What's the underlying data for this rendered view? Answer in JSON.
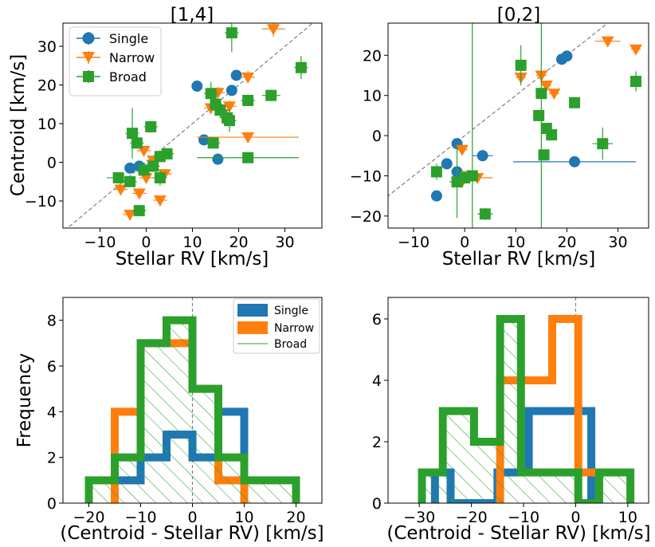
{
  "colors": {
    "single": "#1f77b4",
    "narrow": "#ff7f0e",
    "broad": "#2ca02c",
    "diag": "#7f7f7f"
  },
  "chart_data": [
    {
      "type": "scatter",
      "title": "[1,4]",
      "xlabel": "Stellar RV [km/s]",
      "ylabel": "Centroid [km/s]",
      "xlim": [
        -18,
        38
      ],
      "ylim": [
        -17,
        36
      ],
      "xticks": [
        -10,
        0,
        10,
        20,
        30
      ],
      "yticks": [
        -10,
        0,
        10,
        20,
        30
      ],
      "tick_labels_x": [
        "−10",
        "0",
        "10",
        "20",
        "30"
      ],
      "tick_labels_y": [
        "−10",
        "0",
        "10",
        "20",
        "30"
      ],
      "diagonal": true,
      "legend": {
        "position": "top-left",
        "entries": [
          "Single",
          "Narrow",
          "Broad"
        ]
      },
      "series": [
        {
          "name": "Single",
          "marker": "circle",
          "points": [
            {
              "x": -3.5,
              "y": -1.5,
              "xerr": 0.8,
              "yerr": 0.8
            },
            {
              "x": -1.5,
              "y": -1.0,
              "xerr": 0.8,
              "yerr": 0.8
            },
            {
              "x": 11,
              "y": 19.7,
              "xerr": 0.8,
              "yerr": 0.8
            },
            {
              "x": 12.5,
              "y": 5.8,
              "xerr": 1.0,
              "yerr": 0.8
            },
            {
              "x": 15.5,
              "y": 0.8,
              "xerr": 0.8,
              "yerr": 0.8
            },
            {
              "x": 18.5,
              "y": 18.6,
              "xerr": 0.8,
              "yerr": 0.8
            },
            {
              "x": 19.5,
              "y": 22.5,
              "xerr": 0.8,
              "yerr": 0.8
            }
          ]
        },
        {
          "name": "Narrow",
          "marker": "triangle_down",
          "points": [
            {
              "x": -5.5,
              "y": -7.0,
              "xerr": 1.5,
              "yerr": 1.0
            },
            {
              "x": -3.5,
              "y": -13.5,
              "xerr": 1.5,
              "yerr": 1.0
            },
            {
              "x": -1.5,
              "y": -8.0,
              "xerr": 1.5,
              "yerr": 1.0
            },
            {
              "x": 0,
              "y": -4.0,
              "xerr": 1.5,
              "yerr": 1.0
            },
            {
              "x": -0.5,
              "y": 3.0,
              "xerr": 1.5,
              "yerr": 1.0
            },
            {
              "x": 1.5,
              "y": 0.5,
              "xerr": 1.5,
              "yerr": 1.0
            },
            {
              "x": 3,
              "y": -9.8,
              "xerr": 1.5,
              "yerr": 1.0
            },
            {
              "x": 4,
              "y": -3.0,
              "xerr": 1.5,
              "yerr": 1.0
            },
            {
              "x": 14,
              "y": 14.0,
              "xerr": 1.5,
              "yerr": 1.5
            },
            {
              "x": 15.5,
              "y": 18.0,
              "xerr": 1.5,
              "yerr": 1.5
            },
            {
              "x": 16.5,
              "y": 12.5,
              "xerr": 1.5,
              "yerr": 1.5
            },
            {
              "x": 18,
              "y": 14.5,
              "xerr": 1.5,
              "yerr": 1.5
            },
            {
              "x": 22,
              "y": 6.5,
              "xerr": 11,
              "yerr": 0.5
            },
            {
              "x": 22,
              "y": 22.0,
              "xerr": 1.5,
              "yerr": 1.5
            },
            {
              "x": 27.5,
              "y": 34.5,
              "xerr": 2.5,
              "yerr": 2.0
            }
          ]
        },
        {
          "name": "Broad",
          "marker": "square",
          "points": [
            {
              "x": -6,
              "y": -4.0,
              "xerr": 2.5,
              "yerr": 1.0
            },
            {
              "x": -3.5,
              "y": -5.0,
              "xerr": 1.5,
              "yerr": 1.0
            },
            {
              "x": -3,
              "y": 7.5,
              "xerr": 1.5,
              "yerr": 6.5
            },
            {
              "x": -2,
              "y": 5.0,
              "xerr": 1.5,
              "yerr": 1.5
            },
            {
              "x": -1.5,
              "y": -12.5,
              "xerr": 1.5,
              "yerr": 1.0
            },
            {
              "x": -0.5,
              "y": -2.0,
              "xerr": 1.5,
              "yerr": 1.5
            },
            {
              "x": 1,
              "y": 9.2,
              "xerr": 1.5,
              "yerr": 1.5
            },
            {
              "x": 1.5,
              "y": -1.0,
              "xerr": 1.5,
              "yerr": 1.5
            },
            {
              "x": 3,
              "y": -4.0,
              "xerr": 1.5,
              "yerr": 2.0
            },
            {
              "x": 3,
              "y": 1.5,
              "xerr": 1.5,
              "yerr": 1.0
            },
            {
              "x": 4.5,
              "y": 2.2,
              "xerr": 1.5,
              "yerr": 1.0
            },
            {
              "x": 14,
              "y": 17.8,
              "xerr": 1.5,
              "yerr": 3.0
            },
            {
              "x": 14.5,
              "y": 5.0,
              "xerr": 1.5,
              "yerr": 1.5
            },
            {
              "x": 15,
              "y": 15.0,
              "xerr": 1.5,
              "yerr": 2.0
            },
            {
              "x": 16,
              "y": 13.5,
              "xerr": 1.5,
              "yerr": 2.0
            },
            {
              "x": 17.5,
              "y": 11.5,
              "xerr": 1.5,
              "yerr": 2.0
            },
            {
              "x": 18,
              "y": 10.8,
              "xerr": 1.5,
              "yerr": 3.0
            },
            {
              "x": 18.5,
              "y": 33.5,
              "xerr": 1.5,
              "yerr": 5.0
            },
            {
              "x": 22,
              "y": 16.0,
              "xerr": 1.5,
              "yerr": 1.5
            },
            {
              "x": 22,
              "y": 1.2,
              "xerr": 11,
              "yerr": 0.5
            },
            {
              "x": 27,
              "y": 17.3,
              "xerr": 2.0,
              "yerr": 1.5
            },
            {
              "x": 33.5,
              "y": 24.5,
              "xerr": 1.5,
              "yerr": 3.0
            }
          ]
        }
      ]
    },
    {
      "type": "scatter",
      "title": "[0,2]",
      "xlabel": "Stellar RV [km/s]",
      "ylabel": "",
      "xlim": [
        -15,
        36
      ],
      "ylim": [
        -23,
        28
      ],
      "xticks": [
        -10,
        0,
        10,
        20,
        30
      ],
      "yticks": [
        -20,
        -10,
        0,
        10,
        20
      ],
      "tick_labels_x": [
        "−10",
        "0",
        "10",
        "20",
        "30"
      ],
      "tick_labels_y": [
        "−20",
        "−10",
        "0",
        "10",
        "20"
      ],
      "diagonal": true,
      "series": [
        {
          "name": "Single",
          "marker": "circle",
          "points": [
            {
              "x": -5.5,
              "y": -15.0,
              "xerr": 0.8,
              "yerr": 0.8
            },
            {
              "x": -3.5,
              "y": -7.0,
              "xerr": 0.8,
              "yerr": 0.8
            },
            {
              "x": -1.5,
              "y": -2.0,
              "xerr": 0.8,
              "yerr": 0.8
            },
            {
              "x": -1.5,
              "y": -9.0,
              "xerr": 0.8,
              "yerr": 0.8
            },
            {
              "x": 3.5,
              "y": -5.0,
              "xerr": 2.0,
              "yerr": 0.8
            },
            {
              "x": 19,
              "y": 19.0,
              "xerr": 0.8,
              "yerr": 0.8
            },
            {
              "x": 20,
              "y": 19.8,
              "xerr": 0.8,
              "yerr": 0.8
            },
            {
              "x": 21.5,
              "y": -6.5,
              "xerr": 12,
              "yerr": 0.5
            }
          ]
        },
        {
          "name": "Narrow",
          "marker": "triangle_down",
          "points": [
            {
              "x": -0.5,
              "y": -3.5,
              "xerr": 1.0,
              "yerr": 1.0
            },
            {
              "x": -0.5,
              "y": -11.5,
              "xerr": 1.5,
              "yerr": 1.0
            },
            {
              "x": 0.5,
              "y": -10.0,
              "xerr": 1.5,
              "yerr": 1.0
            },
            {
              "x": 2.5,
              "y": -10.5,
              "xerr": 3.0,
              "yerr": 1.0
            },
            {
              "x": 11,
              "y": 14.5,
              "xerr": 1.0,
              "yerr": 1.0
            },
            {
              "x": 15,
              "y": 15.0,
              "xerr": 1.0,
              "yerr": 1.0
            },
            {
              "x": 16,
              "y": 12.5,
              "xerr": 1.0,
              "yerr": 1.0
            },
            {
              "x": 17.5,
              "y": 10.5,
              "xerr": 1.0,
              "yerr": 1.0
            },
            {
              "x": 28,
              "y": 23.5,
              "xerr": 2.5,
              "yerr": 1.0
            },
            {
              "x": 33.5,
              "y": 21.5,
              "xerr": 1.0,
              "yerr": 1.0
            }
          ]
        },
        {
          "name": "Broad",
          "marker": "square",
          "points": [
            {
              "x": -5.5,
              "y": -9.0,
              "xerr": 1.0,
              "yerr": 2.0
            },
            {
              "x": -1.5,
              "y": -11.5,
              "xerr": 1.5,
              "yerr": 9.0
            },
            {
              "x": 0,
              "y": -10.5,
              "xerr": 1.5,
              "yerr": 1.0
            },
            {
              "x": 1.5,
              "y": -10.0,
              "xerr": 1.5,
              "yerr": 70
            },
            {
              "x": 4,
              "y": -19.5,
              "xerr": 1.5,
              "yerr": 1.5
            },
            {
              "x": 11,
              "y": 17.5,
              "xerr": 1.0,
              "yerr": 5.0
            },
            {
              "x": 14.5,
              "y": 5.0,
              "xerr": 1.0,
              "yerr": 1.0
            },
            {
              "x": 15,
              "y": 10.5,
              "xerr": 1.0,
              "yerr": 60
            },
            {
              "x": 15.5,
              "y": -4.8,
              "xerr": 1.0,
              "yerr": 1.0
            },
            {
              "x": 16,
              "y": 1.8,
              "xerr": 1.0,
              "yerr": 1.0
            },
            {
              "x": 17,
              "y": 0.2,
              "xerr": 1.0,
              "yerr": 1.0
            },
            {
              "x": 21.5,
              "y": 8.2,
              "xerr": 1.0,
              "yerr": 1.0
            },
            {
              "x": 27,
              "y": -2.0,
              "xerr": 2.0,
              "yerr": 4.0
            },
            {
              "x": 33.5,
              "y": 13.5,
              "xerr": 1.0,
              "yerr": 2.5
            }
          ]
        }
      ]
    },
    {
      "type": "histogram",
      "title": "",
      "xlabel": "(Centroid - Stellar RV) [km/s]",
      "ylabel": "Frequency",
      "xlim": [
        -25,
        25
      ],
      "ylim": [
        0,
        9
      ],
      "xticks": [
        -20,
        -10,
        0,
        10,
        20
      ],
      "yticks": [
        0,
        2,
        4,
        6,
        8
      ],
      "tick_labels_x": [
        "−20",
        "−10",
        "0",
        "10",
        "20"
      ],
      "tick_labels_y": [
        "0",
        "2",
        "4",
        "6",
        "8"
      ],
      "vline_x": 0,
      "legend": {
        "position": "top-right",
        "entries": [
          "Single",
          "Narrow",
          "Broad"
        ]
      },
      "series": [
        {
          "name": "Single",
          "bins": [
            -15,
            -10,
            -5,
            0,
            5,
            10
          ],
          "counts": [
            1,
            2,
            3,
            2,
            4
          ]
        },
        {
          "name": "Narrow",
          "bins": [
            -15,
            -10,
            -5,
            0,
            5,
            10
          ],
          "counts": [
            4,
            7,
            7,
            5,
            1
          ]
        },
        {
          "name": "Broad",
          "bins": [
            -20,
            -15,
            -10,
            -5,
            0,
            5,
            10,
            15,
            20
          ],
          "counts": [
            1,
            2,
            7,
            8,
            5,
            2,
            1,
            1
          ]
        }
      ]
    },
    {
      "type": "histogram",
      "title": "",
      "xlabel": "(Centroid - Stellar RV) [km/s]",
      "ylabel": "",
      "xlim": [
        -36,
        14
      ],
      "ylim": [
        0,
        6.7
      ],
      "xticks": [
        -30,
        -20,
        -10,
        0,
        10
      ],
      "yticks": [
        0,
        2,
        4,
        6
      ],
      "tick_labels_x": [
        "−30",
        "−20",
        "−10",
        "0",
        "10"
      ],
      "tick_labels_y": [
        "0",
        "2",
        "4",
        "6"
      ],
      "vline_x": 0,
      "series": [
        {
          "name": "Single",
          "bins": [
            -27,
            -24,
            -21,
            -18,
            -15,
            -12,
            -9,
            -6,
            -3,
            0,
            3
          ],
          "counts": [
            1,
            0,
            0,
            0,
            1,
            1,
            3,
            3,
            3,
            3
          ]
        },
        {
          "name": "Narrow",
          "bins": [
            -14.5,
            -10.5,
            -4.5,
            0.5,
            4.5
          ],
          "counts": [
            4,
            4,
            6,
            1
          ]
        },
        {
          "name": "Broad",
          "bins": [
            -29.5,
            -25.5,
            -19.5,
            -14.5,
            -10.5,
            -4.5,
            0.5,
            4.5,
            10.5
          ],
          "counts": [
            1,
            3,
            2,
            6,
            1,
            1,
            0,
            1
          ]
        }
      ]
    }
  ]
}
